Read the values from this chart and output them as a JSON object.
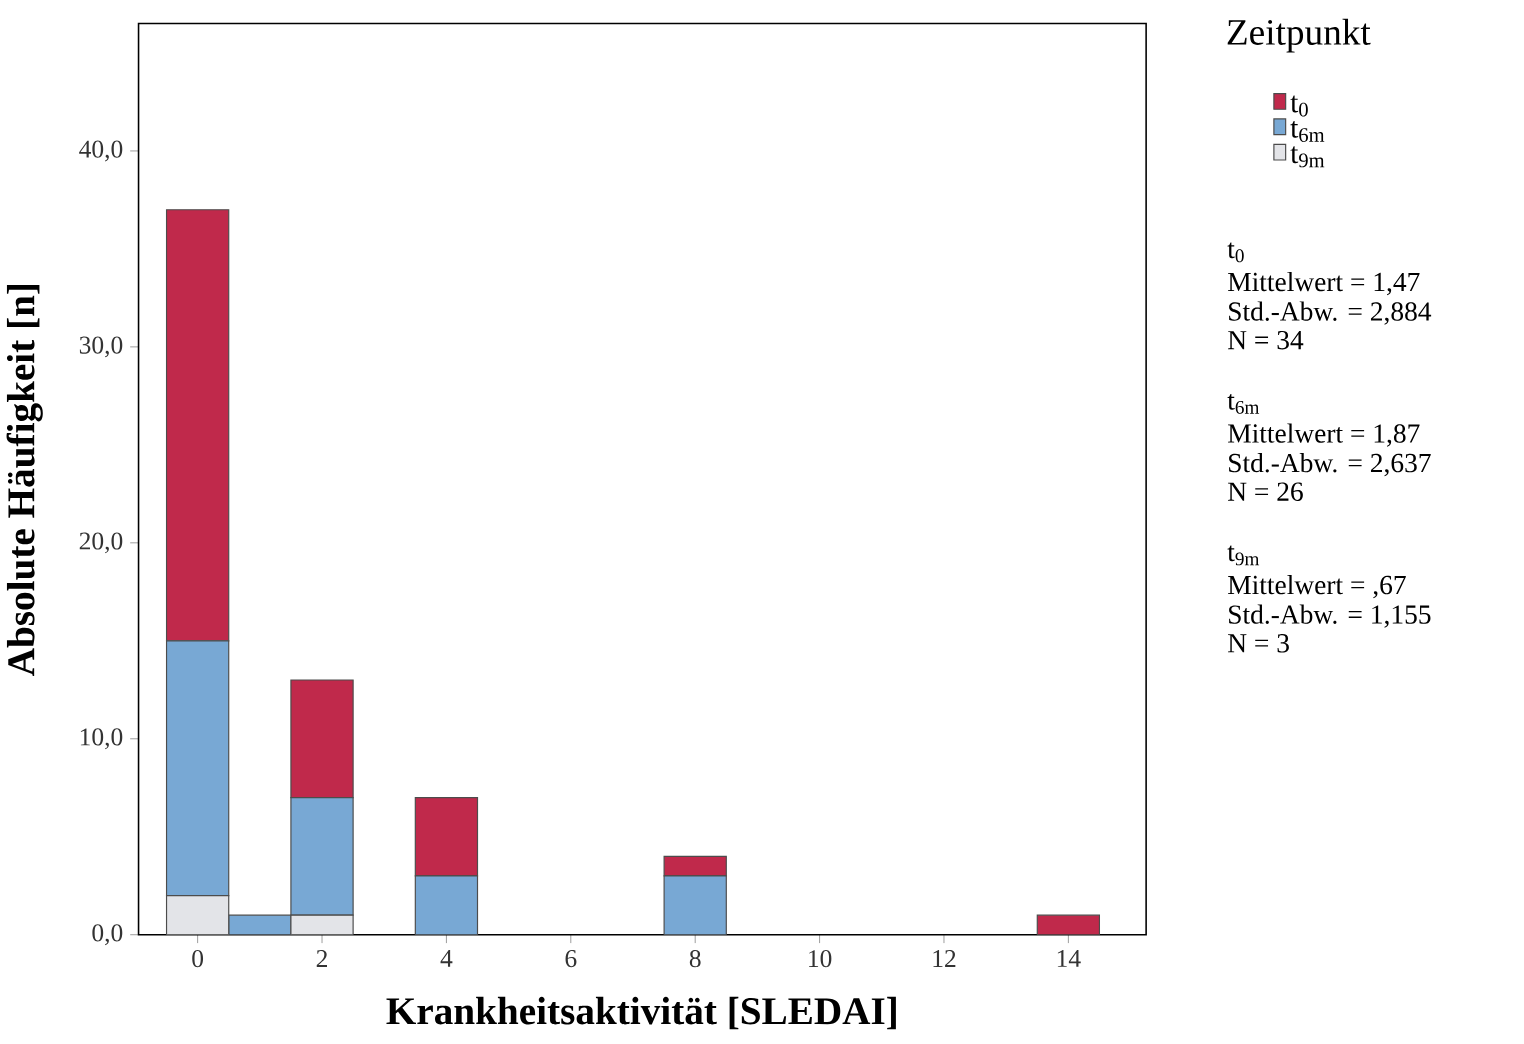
{
  "chart_data": {
    "type": "bar",
    "xlabel": "Krankheitsaktivität [SLEDAI]",
    "ylabel": "Absolute Häufigkeit [n]",
    "legend_title": "Zeitpunkt",
    "x": [
      0,
      1,
      2,
      3,
      4,
      5,
      6,
      7,
      8,
      9,
      10,
      11,
      12,
      13,
      14
    ],
    "stacked": true,
    "series": [
      {
        "name": "t$_{9m}$",
        "color": "#e3e4e8",
        "values": [
          2,
          0,
          1,
          0,
          0,
          0,
          0,
          0,
          0,
          0,
          0,
          0,
          0,
          0,
          0
        ]
      },
      {
        "name": "t$_{6m}$",
        "color": "#78a8d4",
        "values": [
          13,
          1,
          6,
          0,
          3,
          0,
          0,
          0,
          3,
          0,
          0,
          0,
          0,
          0,
          0
        ]
      },
      {
        "name": "t$_{0}$",
        "color": "#c0294b",
        "values": [
          22,
          0,
          6,
          0,
          4,
          0,
          0,
          0,
          1,
          0,
          0,
          0,
          0,
          0,
          1
        ]
      }
    ],
    "xlim": [
      -0.95,
      15.25
    ],
    "xticks": [
      0,
      2,
      4,
      6,
      8,
      10,
      12,
      14
    ],
    "ylim": [
      0,
      46.5
    ],
    "yticks": [
      {
        "value": 0,
        "label": "0,0"
      },
      {
        "value": 10,
        "label": "10,0"
      },
      {
        "value": 20,
        "label": "20,0"
      },
      {
        "value": 30,
        "label": "30,0"
      },
      {
        "value": 40,
        "label": "40,0"
      }
    ],
    "legend": "right",
    "grid": false,
    "annotations": [
      "t$_{0}$",
      "Mittelwert = 1,47",
      "Std.-Abw. = 2,884",
      "N = 34",
      "t$_{6m}$",
      "Mittelwert = 1,87",
      "Std.-Abw. = 2,637",
      "N = 26",
      "t$_{9m}$",
      "Mittelwert = ,67",
      "Std.-Abw. = 1,155",
      "N = 3"
    ]
  }
}
